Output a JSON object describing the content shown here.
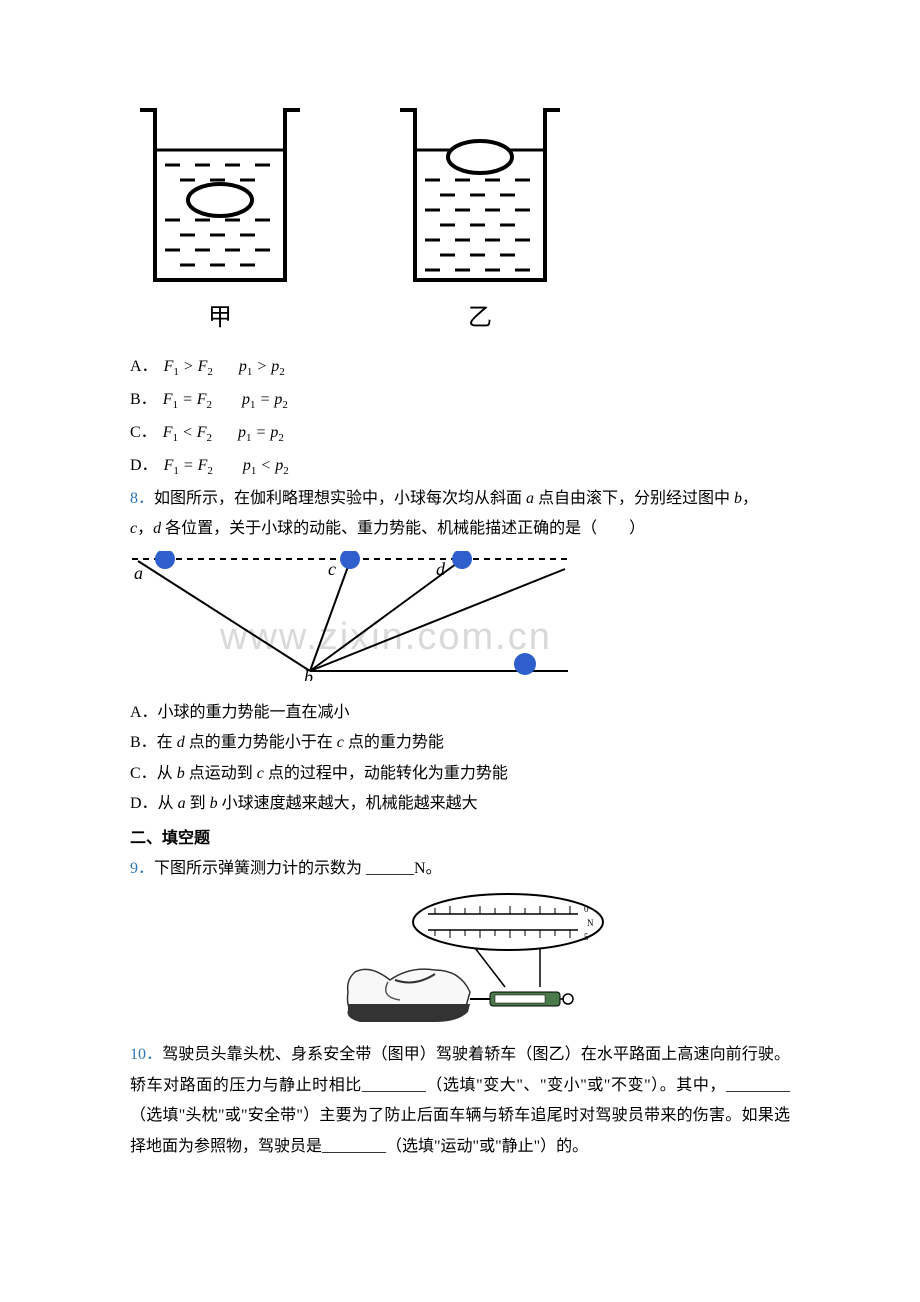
{
  "beakers": {
    "left_label": "甲",
    "right_label": "乙"
  },
  "q7_options": {
    "a_letter": "A．",
    "a_formula1": "F<sub>1</sub> &gt; F<sub>2</sub>",
    "a_formula2": "p<sub>1</sub> &gt; p<sub>2</sub>",
    "b_letter": "B．",
    "b_formula1": "F<sub>1</sub> = F<sub>2</sub>",
    "b_formula2": "p<sub>1</sub> = p<sub>2</sub>",
    "c_letter": "C．",
    "c_formula1": "F<sub>1</sub> &lt; F<sub>2</sub>",
    "c_formula2": "p<sub>1</sub> = p<sub>2</sub>",
    "d_letter": "D．",
    "d_formula1": "F<sub>1</sub> = F<sub>2</sub>",
    "d_formula2": "p<sub>1</sub> &lt; p<sub>2</sub>"
  },
  "q8": {
    "num": "8．",
    "line1_a": "如图所示，在伽利略理想实验中，小球每次均从斜面 ",
    "line1_b": "a",
    "line1_c": " 点自由滚下，分别经过图中 ",
    "line1_d": "b",
    "line1_e": "，",
    "line2_a": "c",
    "line2_b": "，",
    "line2_c": "d",
    "line2_d": " 各位置，关于小球的动能、重力势能、机械能描述正确的是（　　）",
    "diagram": {
      "labels": {
        "a": "a",
        "b": "b",
        "c": "c",
        "d": "d"
      },
      "ball_color": "#2e5fcc",
      "line_color": "#000000"
    },
    "opt_a": "A．小球的重力势能一直在减小",
    "opt_b_pre": "B．在 ",
    "opt_b_d": "d",
    "opt_b_mid": " 点的重力势能小于在 ",
    "opt_b_c": "c",
    "opt_b_post": " 点的重力势能",
    "opt_c_pre": "C．从 ",
    "opt_c_b": "b",
    "opt_c_mid": " 点运动到 ",
    "opt_c_c": "c",
    "opt_c_post": " 点的过程中，动能转化为重力势能",
    "opt_d_pre": "D．从 ",
    "opt_d_a": "a",
    "opt_d_mid": " 到 ",
    "opt_d_b": "b",
    "opt_d_post": " 小球速度越来越大，机械能越来越大"
  },
  "section2": "二、填空题",
  "q9": {
    "num": "9．",
    "text_a": "下图所示弹簧测力计的示数为 ______N。"
  },
  "q10": {
    "num": "10．",
    "text": "驾驶员头靠头枕、身系安全带（图甲）驾驶着轿车（图乙）在水平路面上高速向前行驶。轿车对路面的压力与静止时相比________（选填\"变大\"、\"变小\"或\"不变\"）。其中，________（选填\"头枕\"或\"安全带\"）主要为了防止后面车辆与轿车追尾时对驾驶员带来的伤害。如果选择地面为参照物，驾驶员是________（选填\"运动\"或\"静止\"）的。"
  },
  "watermark_text": "www.zixin.com.cn"
}
